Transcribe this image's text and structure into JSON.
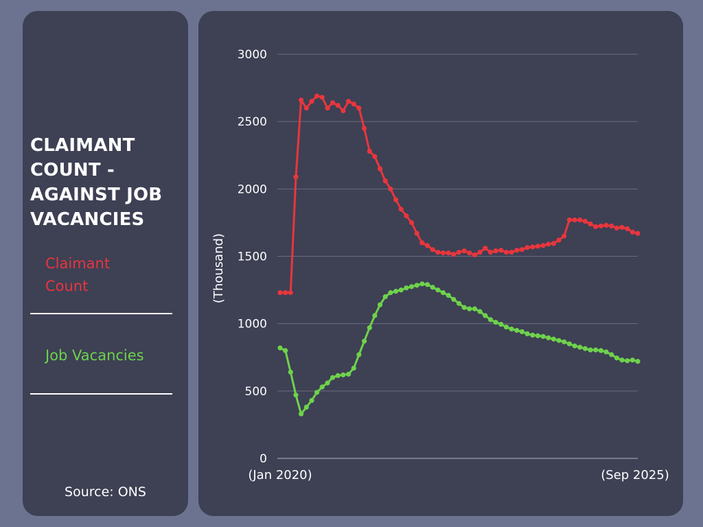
{
  "sidebar": {
    "title": "CLAIMANT COUNT - AGAINST JOB VACANCIES",
    "legend": [
      {
        "label": "Claimant Count",
        "color": "#e8363d"
      },
      {
        "label": "Job Vacancies",
        "color": "#6ed24b"
      }
    ],
    "source": "Source: ONS"
  },
  "chart_data": {
    "type": "line",
    "title": "CLAIMANT COUNT - AGAINST JOB VACANCIES",
    "xlabel": "",
    "ylabel": "(Thousand)",
    "x_start_label": "(Jan 2020)",
    "x_end_label": "(Sep 2025)",
    "ylim": [
      0,
      3000
    ],
    "yticks": [
      0,
      500,
      1000,
      1500,
      2000,
      2500,
      3000
    ],
    "grid": true,
    "legend_position": "left panel",
    "background": "#3e4054",
    "series": [
      {
        "name": "Claimant Count",
        "color": "#e8363d",
        "values": [
          1230,
          1230,
          1230,
          2090,
          2660,
          2600,
          2650,
          2690,
          2680,
          2600,
          2640,
          2620,
          2580,
          2650,
          2630,
          2600,
          2450,
          2280,
          2240,
          2150,
          2060,
          2000,
          1920,
          1850,
          1800,
          1750,
          1670,
          1600,
          1580,
          1550,
          1530,
          1525,
          1525,
          1515,
          1530,
          1540,
          1525,
          1510,
          1530,
          1560,
          1530,
          1540,
          1545,
          1530,
          1530,
          1545,
          1550,
          1565,
          1570,
          1575,
          1580,
          1590,
          1595,
          1620,
          1650,
          1770,
          1770,
          1770,
          1760,
          1740,
          1720,
          1725,
          1730,
          1725,
          1710,
          1715,
          1705,
          1680,
          1670
        ]
      },
      {
        "name": "Job Vacancies",
        "color": "#6ed24b",
        "values": [
          820,
          800,
          640,
          470,
          330,
          380,
          430,
          490,
          530,
          560,
          600,
          615,
          620,
          625,
          670,
          770,
          870,
          970,
          1060,
          1140,
          1200,
          1230,
          1240,
          1250,
          1265,
          1275,
          1285,
          1295,
          1290,
          1270,
          1250,
          1230,
          1210,
          1180,
          1150,
          1120,
          1110,
          1110,
          1090,
          1060,
          1030,
          1010,
          995,
          975,
          960,
          950,
          940,
          925,
          915,
          910,
          905,
          895,
          885,
          875,
          865,
          850,
          835,
          825,
          815,
          805,
          805,
          800,
          790,
          770,
          745,
          730,
          725,
          730,
          720
        ]
      }
    ]
  }
}
